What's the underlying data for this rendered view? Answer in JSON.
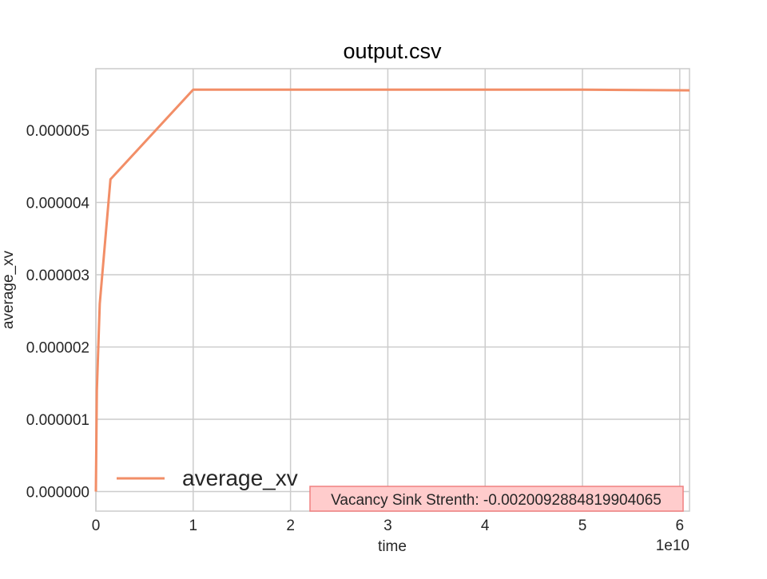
{
  "chart_data": {
    "type": "line",
    "title": "output.csv",
    "xlabel": "time",
    "ylabel": "average_xv",
    "x_offset_label": "1e10",
    "xlim": [
      0,
      6.1
    ],
    "ylim": [
      -2.7e-07,
      5.85e-06
    ],
    "x_ticks": [
      0,
      1,
      2,
      3,
      4,
      5,
      6
    ],
    "x_tick_labels": [
      "0",
      "1",
      "2",
      "3",
      "4",
      "5",
      "6"
    ],
    "y_ticks": [
      0,
      1e-06,
      2e-06,
      3e-06,
      4e-06,
      5e-06
    ],
    "y_tick_labels": [
      "0.000000",
      "0.000001",
      "0.000002",
      "0.000003",
      "0.000004",
      "0.000005"
    ],
    "grid": true,
    "legend_position": "bottom-left",
    "series": [
      {
        "name": "average_xv",
        "color": "#f28e67",
        "x": [
          0,
          0.01,
          0.04,
          0.15,
          1.0,
          2.0,
          3.0,
          4.0,
          5.0,
          6.1
        ],
        "y": [
          0,
          1.4e-06,
          2.6e-06,
          4.32e-06,
          5.56e-06,
          5.56e-06,
          5.56e-06,
          5.56e-06,
          5.56e-06,
          5.55e-06
        ]
      }
    ],
    "annotation": {
      "text": "Vacancy Sink Strenth: -0.0020092884819904065",
      "face_color": "#ffcccc",
      "edge_color": "#f08080",
      "position": "bottom-right"
    }
  }
}
